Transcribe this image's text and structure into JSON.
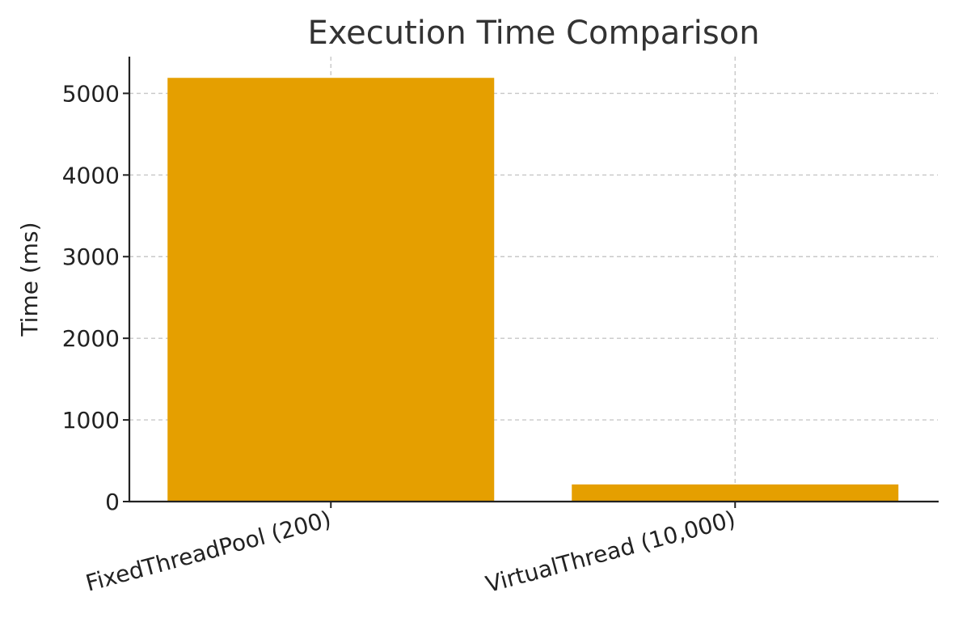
{
  "chart_data": {
    "type": "bar",
    "title": "Execution Time Comparison",
    "xlabel": "",
    "ylabel": "Time (ms)",
    "categories": [
      "FixedThreadPool (200)",
      "VirtualThread (10,000)"
    ],
    "values": [
      5190,
      210
    ],
    "ylim": [
      0,
      5450
    ],
    "yticks": [
      0,
      1000,
      2000,
      3000,
      4000,
      5000
    ],
    "grid": true,
    "bar_color": "#e59f00"
  }
}
